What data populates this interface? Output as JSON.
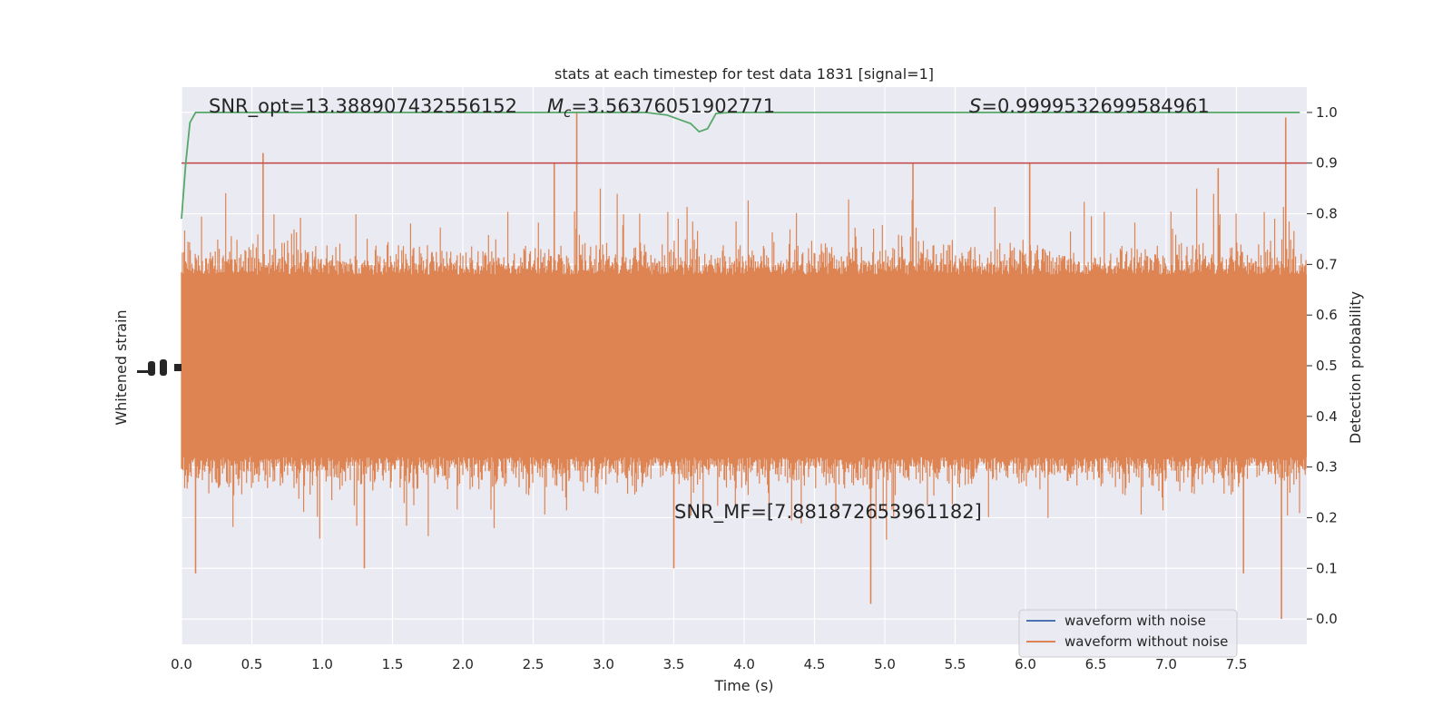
{
  "chart_data": {
    "type": "line",
    "title": "stats at each timestep for test data 1831 [signal=1]",
    "xlabel": "Time (s)",
    "ylabel_left": "Whitened strain",
    "ylabel_right": "Detection probability",
    "xlim": [
      0.0,
      8.0
    ],
    "ylim_right": [
      -0.05,
      1.05
    ],
    "x_ticks": [
      "0.0",
      "0.5",
      "1.0",
      "1.5",
      "2.0",
      "2.5",
      "3.0",
      "3.5",
      "4.0",
      "4.5",
      "5.0",
      "5.5",
      "6.0",
      "6.5",
      "7.0",
      "7.5"
    ],
    "y_ticks_right": [
      "0.0",
      "0.1",
      "0.2",
      "0.3",
      "0.4",
      "0.5",
      "0.6",
      "0.7",
      "0.8",
      "0.9",
      "1.0"
    ],
    "grid": true,
    "legend_position": "lower-right",
    "annotations": {
      "snr_opt": "SNR_opt=13.388907432556152",
      "mc_symbol": "M",
      "mc_sub": "c",
      "mc_value": "=3.56376051902771",
      "s_symbol": "S",
      "s_value": "=0.9999532699584961",
      "snr_mf": "SNR_MF=[7.881872653961182]"
    },
    "threshold": {
      "value": 0.9,
      "color": "#c44e52"
    },
    "series": [
      {
        "name": "waveform with noise",
        "color": "#4c72b0",
        "description_values": []
      },
      {
        "name": "waveform without noise",
        "color": "#dd8452",
        "noise_center": 0.5,
        "noise_core_halfwidth": 0.18,
        "peak_values_high": [
          [
            0.58,
            0.92
          ],
          [
            2.65,
            0.9
          ],
          [
            2.81,
            1.0
          ],
          [
            5.2,
            0.9
          ],
          [
            6.03,
            0.9
          ],
          [
            7.37,
            0.89
          ],
          [
            7.85,
            0.99
          ]
        ],
        "peak_values_low": [
          [
            0.1,
            0.09
          ],
          [
            1.3,
            0.1
          ],
          [
            3.5,
            0.1
          ],
          [
            4.9,
            0.03
          ],
          [
            7.55,
            0.09
          ],
          [
            7.82,
            0.0
          ]
        ]
      },
      {
        "name": "detection probability",
        "color": "#55a868",
        "x": [
          0.0,
          0.03,
          0.06,
          0.1,
          0.2,
          3.3,
          3.45,
          3.55,
          3.62,
          3.68,
          3.74,
          3.8,
          3.9,
          7.95
        ],
        "y": [
          0.79,
          0.9,
          0.98,
          1.0,
          1.0,
          1.0,
          0.995,
          0.985,
          0.978,
          0.962,
          0.968,
          0.998,
          1.0,
          1.0
        ]
      }
    ]
  }
}
